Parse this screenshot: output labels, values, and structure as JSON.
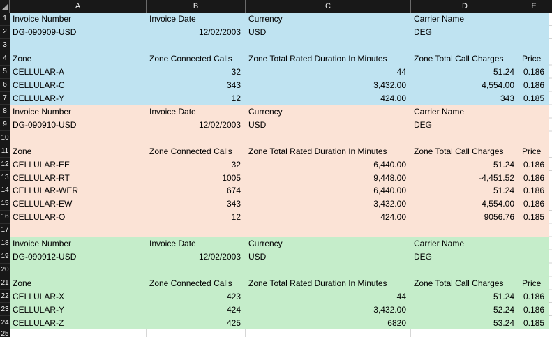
{
  "sheet": {
    "partial_row_number": "25",
    "columns": [
      "A",
      "B",
      "C",
      "D",
      "E"
    ],
    "colors": {
      "blue": "#bfe3f1",
      "peach": "#fbe3d6",
      "green": "#c5edca",
      "header_bg": "#181818",
      "header_text": "#f2f2f2",
      "gridline": "#d6d6d6"
    },
    "sections": [
      {
        "name": "invoice-1",
        "rows": "1-7",
        "color_key": "blue",
        "invoice_number": "DG-090909-USD"
      },
      {
        "name": "invoice-2",
        "rows": "8-17",
        "color_key": "peach",
        "invoice_number": "DG-090910-USD"
      },
      {
        "name": "invoice-3",
        "rows": "18-24",
        "color_key": "green",
        "invoice_number": "DG-090912-USD"
      }
    ],
    "rows": [
      {
        "n": 1,
        "s": "blue",
        "cells": {
          "A": [
            "Invoice Number",
            "l"
          ],
          "B": [
            "Invoice Date",
            "l"
          ],
          "C": [
            "Currency",
            "l"
          ],
          "D": [
            "Carrier Name",
            "l"
          ]
        }
      },
      {
        "n": 2,
        "s": "blue",
        "cells": {
          "A": [
            "DG-090909-USD",
            "l"
          ],
          "B": [
            "12/02/2003",
            "r"
          ],
          "C": [
            "USD",
            "l"
          ],
          "D": [
            "DEG",
            "l"
          ]
        }
      },
      {
        "n": 3,
        "s": "blue",
        "cells": {}
      },
      {
        "n": 4,
        "s": "blue",
        "cells": {
          "A": [
            "Zone",
            "l"
          ],
          "B": [
            "Zone Connected Calls",
            "l"
          ],
          "C": [
            "Zone Total Rated Duration In Minutes",
            "l"
          ],
          "D": [
            "Zone Total Call Charges",
            "l"
          ],
          "E": [
            "Price",
            "l"
          ]
        }
      },
      {
        "n": 5,
        "s": "blue",
        "cells": {
          "A": [
            "CELLULAR-A",
            "l"
          ],
          "B": [
            "32",
            "r"
          ],
          "C": [
            "44",
            "r"
          ],
          "D": [
            "51.24",
            "r"
          ],
          "E": [
            "0.186",
            "r"
          ]
        }
      },
      {
        "n": 6,
        "s": "blue",
        "cells": {
          "A": [
            "CELLULAR-C",
            "l"
          ],
          "B": [
            "343",
            "r"
          ],
          "C": [
            "3,432.00",
            "r"
          ],
          "D": [
            "4,554.00",
            "r"
          ],
          "E": [
            "0.186",
            "r"
          ]
        }
      },
      {
        "n": 7,
        "s": "blue",
        "cells": {
          "A": [
            "CELLULAR-Y",
            "l"
          ],
          "B": [
            "12",
            "r"
          ],
          "C": [
            "424.00",
            "r"
          ],
          "D": [
            "343",
            "r"
          ],
          "E": [
            "0.185",
            "r"
          ]
        }
      },
      {
        "n": 8,
        "s": "peach",
        "cells": {
          "A": [
            "Invoice Number",
            "l"
          ],
          "B": [
            "Invoice Date",
            "l"
          ],
          "C": [
            "Currency",
            "l"
          ],
          "D": [
            "Carrier Name",
            "l"
          ]
        }
      },
      {
        "n": 9,
        "s": "peach",
        "cells": {
          "A": [
            "DG-090910-USD",
            "l"
          ],
          "B": [
            "12/02/2003",
            "r"
          ],
          "C": [
            "USD",
            "l"
          ],
          "D": [
            "DEG",
            "l"
          ]
        }
      },
      {
        "n": 10,
        "s": "peach",
        "cells": {}
      },
      {
        "n": 11,
        "s": "peach",
        "cells": {
          "A": [
            "Zone",
            "l"
          ],
          "B": [
            "Zone Connected Calls",
            "l"
          ],
          "C": [
            "Zone Total Rated Duration In Minutes",
            "l"
          ],
          "D": [
            "Zone Total Call Charges",
            "l"
          ],
          "E": [
            "Price",
            "l"
          ]
        }
      },
      {
        "n": 12,
        "s": "peach",
        "cells": {
          "A": [
            "CELLULAR-EE",
            "l"
          ],
          "B": [
            "32",
            "r"
          ],
          "C": [
            "6,440.00",
            "r"
          ],
          "D": [
            "51.24",
            "r"
          ],
          "E": [
            "0.186",
            "r"
          ]
        }
      },
      {
        "n": 13,
        "s": "peach",
        "cells": {
          "A": [
            "CELLULAR-RT",
            "l"
          ],
          "B": [
            "1005",
            "r"
          ],
          "C": [
            "9,448.00",
            "r"
          ],
          "D": [
            "-4,451.52",
            "r"
          ],
          "E": [
            "0.186",
            "r"
          ]
        }
      },
      {
        "n": 14,
        "s": "peach",
        "cells": {
          "A": [
            "CELLULAR-WER",
            "l"
          ],
          "B": [
            "674",
            "r"
          ],
          "C": [
            "6,440.00",
            "r"
          ],
          "D": [
            "51.24",
            "r"
          ],
          "E": [
            "0.186",
            "r"
          ]
        }
      },
      {
        "n": 15,
        "s": "peach",
        "cells": {
          "A": [
            "CELLULAR-EW",
            "l"
          ],
          "B": [
            "343",
            "r"
          ],
          "C": [
            "3,432.00",
            "r"
          ],
          "D": [
            "4,554.00",
            "r"
          ],
          "E": [
            "0.186",
            "r"
          ]
        }
      },
      {
        "n": 16,
        "s": "peach",
        "cells": {
          "A": [
            "CELLULAR-O",
            "l"
          ],
          "B": [
            "12",
            "r"
          ],
          "C": [
            "424.00",
            "r"
          ],
          "D": [
            "9056.76",
            "r"
          ],
          "E": [
            "0.185",
            "r"
          ]
        }
      },
      {
        "n": 17,
        "s": "peach",
        "cells": {}
      },
      {
        "n": 18,
        "s": "green",
        "cells": {
          "A": [
            "Invoice Number",
            "l"
          ],
          "B": [
            "Invoice Date",
            "l"
          ],
          "C": [
            "Currency",
            "l"
          ],
          "D": [
            "Carrier Name",
            "l"
          ]
        }
      },
      {
        "n": 19,
        "s": "green",
        "cells": {
          "A": [
            "DG-090912-USD",
            "l"
          ],
          "B": [
            "12/02/2003",
            "r"
          ],
          "C": [
            "USD",
            "l"
          ],
          "D": [
            "DEG",
            "l"
          ]
        }
      },
      {
        "n": 20,
        "s": "green",
        "cells": {}
      },
      {
        "n": 21,
        "s": "green",
        "cells": {
          "A": [
            "Zone",
            "l"
          ],
          "B": [
            "Zone Connected Calls",
            "l"
          ],
          "C": [
            "Zone Total Rated Duration In Minutes",
            "l"
          ],
          "D": [
            "Zone Total Call Charges",
            "l"
          ],
          "E": [
            "Price",
            "l"
          ]
        }
      },
      {
        "n": 22,
        "s": "green",
        "cells": {
          "A": [
            "CELLULAR-X",
            "l"
          ],
          "B": [
            "423",
            "r"
          ],
          "C": [
            "44",
            "r"
          ],
          "D": [
            "51.24",
            "r"
          ],
          "E": [
            "0.186",
            "r"
          ]
        }
      },
      {
        "n": 23,
        "s": "green",
        "cells": {
          "A": [
            "CELLULAR-Y",
            "l"
          ],
          "B": [
            "424",
            "r"
          ],
          "C": [
            "3,432.00",
            "r"
          ],
          "D": [
            "52.24",
            "r"
          ],
          "E": [
            "0.186",
            "r"
          ]
        }
      },
      {
        "n": 24,
        "s": "green",
        "cells": {
          "A": [
            "CELLULAR-Z",
            "l"
          ],
          "B": [
            "425",
            "r"
          ],
          "C": [
            "6820",
            "r"
          ],
          "D": [
            "53.24",
            "r"
          ],
          "E": [
            "0.185",
            "r"
          ]
        }
      }
    ]
  }
}
